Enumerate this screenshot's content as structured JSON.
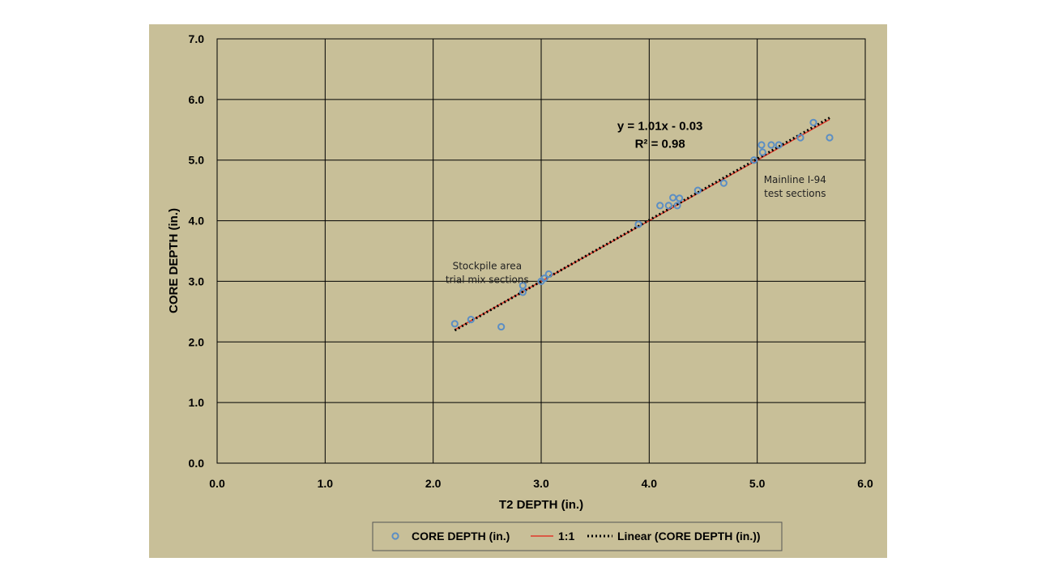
{
  "chart_data": {
    "type": "scatter",
    "xlabel": "T2 DEPTH (in.)",
    "ylabel": "CORE DEPTH (in.)",
    "xlim": [
      0,
      6
    ],
    "ylim": [
      0,
      7
    ],
    "x_ticks": [
      "0.0",
      "1.0",
      "2.0",
      "3.0",
      "4.0",
      "5.0",
      "6.0"
    ],
    "y_ticks": [
      "0.0",
      "1.0",
      "2.0",
      "3.0",
      "4.0",
      "5.0",
      "6.0",
      "7.0"
    ],
    "grid": true,
    "legend_position": "bottom",
    "colors": {
      "figure_background": "#c8bf98",
      "plot_background": "#c8bf98",
      "markers": "#5b8ec4",
      "one_to_one_line": "#e0382a",
      "trend_line": "#000000"
    },
    "series": [
      {
        "name": "CORE DEPTH (in.)",
        "kind": "scatter",
        "points": [
          [
            2.2,
            2.3
          ],
          [
            2.35,
            2.37
          ],
          [
            2.63,
            2.25
          ],
          [
            2.83,
            2.93
          ],
          [
            2.83,
            2.82
          ],
          [
            3.0,
            3.0
          ],
          [
            3.03,
            3.05
          ],
          [
            3.07,
            3.12
          ],
          [
            3.9,
            3.94
          ],
          [
            4.1,
            4.25
          ],
          [
            4.18,
            4.25
          ],
          [
            4.22,
            4.38
          ],
          [
            4.26,
            4.25
          ],
          [
            4.28,
            4.37
          ],
          [
            4.45,
            4.5
          ],
          [
            4.69,
            4.62
          ],
          [
            4.97,
            5.0
          ],
          [
            5.04,
            5.25
          ],
          [
            5.05,
            5.13
          ],
          [
            5.13,
            5.25
          ],
          [
            5.2,
            5.25
          ],
          [
            5.4,
            5.37
          ],
          [
            5.52,
            5.62
          ],
          [
            5.67,
            5.37
          ]
        ]
      },
      {
        "name": "1:1",
        "kind": "line",
        "points": [
          [
            2.2,
            2.2
          ],
          [
            5.67,
            5.67
          ]
        ]
      },
      {
        "name": "Linear (CORE DEPTH (in.))",
        "kind": "trendline",
        "slope": 1.01,
        "intercept": -0.03,
        "x_range": [
          2.2,
          5.67
        ]
      }
    ],
    "annotations": [
      {
        "lines": [
          "y = 1.01x - 0.03",
          "R² = 0.98"
        ],
        "at": [
          4.1,
          5.5
        ]
      },
      {
        "lines": [
          "Stockpile area",
          "trial mix sections"
        ],
        "at": [
          2.5,
          3.2
        ]
      },
      {
        "lines": [
          "Mainline I-94",
          "test sections"
        ],
        "at": [
          5.35,
          4.62
        ]
      }
    ]
  }
}
